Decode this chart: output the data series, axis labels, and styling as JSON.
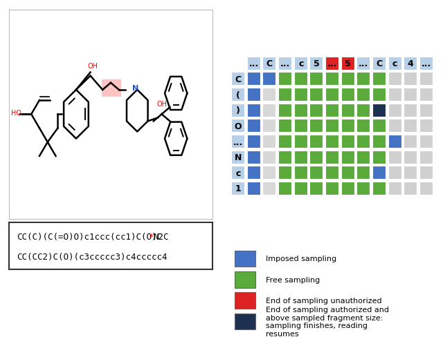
{
  "col_headers": [
    "...",
    "C",
    "...",
    "c",
    "5",
    "...",
    "5",
    "...",
    "C",
    "c",
    "4",
    "..."
  ],
  "row_headers": [
    "C",
    "(",
    ")",
    "O",
    "...",
    "N",
    "c",
    "1"
  ],
  "col_header_colors": [
    "#b8cfe8",
    "#b8cfe8",
    "#b8cfe8",
    "#b8cfe8",
    "#b8cfe8",
    "#dd2222",
    "#dd2222",
    "#b8cfe8",
    "#b8cfe8",
    "#b8cfe8",
    "#b8cfe8",
    "#b8cfe8"
  ],
  "row_header_colors": [
    "#b8cfe8",
    "#b8cfe8",
    "#b8cfe8",
    "#b8cfe8",
    "#b8cfe8",
    "#b8cfe8",
    "#b8cfe8",
    "#b8cfe8"
  ],
  "grid_colors": [
    [
      "#4472c4",
      "#4472c4",
      "#5aaa3c",
      "#5aaa3c",
      "#5aaa3c",
      "#5aaa3c",
      "#5aaa3c",
      "#5aaa3c",
      "#5aaa3c",
      "#d0d0d0",
      "#d0d0d0",
      "#d0d0d0"
    ],
    [
      "#4472c4",
      "#d8d8d8",
      "#5aaa3c",
      "#5aaa3c",
      "#5aaa3c",
      "#5aaa3c",
      "#5aaa3c",
      "#5aaa3c",
      "#5aaa3c",
      "#d0d0d0",
      "#d0d0d0",
      "#d0d0d0"
    ],
    [
      "#4472c4",
      "#d8d8d8",
      "#5aaa3c",
      "#5aaa3c",
      "#5aaa3c",
      "#5aaa3c",
      "#5aaa3c",
      "#5aaa3c",
      "#1e3050",
      "#d0d0d0",
      "#d0d0d0",
      "#d0d0d0"
    ],
    [
      "#4472c4",
      "#d8d8d8",
      "#5aaa3c",
      "#5aaa3c",
      "#5aaa3c",
      "#5aaa3c",
      "#5aaa3c",
      "#5aaa3c",
      "#5aaa3c",
      "#d0d0d0",
      "#d0d0d0",
      "#d0d0d0"
    ],
    [
      "#4472c4",
      "#d8d8d8",
      "#5aaa3c",
      "#5aaa3c",
      "#5aaa3c",
      "#5aaa3c",
      "#5aaa3c",
      "#5aaa3c",
      "#5aaa3c",
      "#4472c4",
      "#d0d0d0",
      "#d0d0d0"
    ],
    [
      "#4472c4",
      "#d8d8d8",
      "#5aaa3c",
      "#5aaa3c",
      "#5aaa3c",
      "#5aaa3c",
      "#5aaa3c",
      "#5aaa3c",
      "#5aaa3c",
      "#d0d0d0",
      "#d0d0d0",
      "#d0d0d0"
    ],
    [
      "#4472c4",
      "#d8d8d8",
      "#5aaa3c",
      "#5aaa3c",
      "#5aaa3c",
      "#5aaa3c",
      "#5aaa3c",
      "#5aaa3c",
      "#4472c4",
      "#d0d0d0",
      "#d0d0d0",
      "#d0d0d0"
    ],
    [
      "#4472c4",
      "#d8d8d8",
      "#5aaa3c",
      "#5aaa3c",
      "#5aaa3c",
      "#5aaa3c",
      "#5aaa3c",
      "#5aaa3c",
      "#5aaa3c",
      "#d0d0d0",
      "#d0d0d0",
      "#d0d0d0"
    ]
  ],
  "legend_items": [
    {
      "color": "#4472c4",
      "label": "Imposed sampling"
    },
    {
      "color": "#5aaa3c",
      "label": "Free sampling"
    },
    {
      "color": "#dd2222",
      "label": "End of sampling unauthorized"
    },
    {
      "color": "#1e3050",
      "label": "End of sampling authorized and\nabove sampled fragment size:\nsampling finishes, reading\nresumes"
    }
  ],
  "smiles_line1": "CC(C)(C(=O)O)c1ccc(cc1)C(O)C*N2C",
  "smiles_line2": "CC(CC2)C(O)(c3ccccc3)c4ccccc4",
  "white_bg": "#ffffff",
  "grid_bg": "#e8e8e8"
}
